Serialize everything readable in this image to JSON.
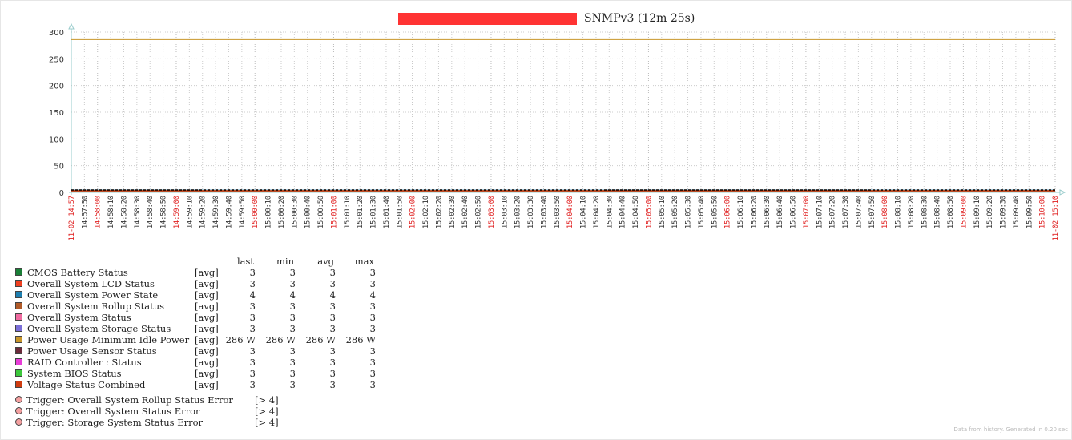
{
  "title": "SNMPv3 (12m 25s)",
  "chart_data": {
    "type": "line",
    "y_ticks": [
      "300",
      "250",
      "200",
      "150",
      "100",
      "50",
      "0"
    ],
    "ylim": [
      0,
      300
    ],
    "grid": true,
    "x_labels": [
      "11-02 14:57",
      "14:57:50",
      "14:58:00",
      "14:58:10",
      "14:58:20",
      "14:58:30",
      "14:58:40",
      "14:58:50",
      "14:59:00",
      "14:59:10",
      "14:59:20",
      "14:59:30",
      "14:59:40",
      "14:59:50",
      "15:00:00",
      "15:00:10",
      "15:00:20",
      "15:00:30",
      "15:00:40",
      "15:00:50",
      "15:01:00",
      "15:01:10",
      "15:01:20",
      "15:01:30",
      "15:01:40",
      "15:01:50",
      "15:02:00",
      "15:02:10",
      "15:02:20",
      "15:02:30",
      "15:02:40",
      "15:02:50",
      "15:03:00",
      "15:03:10",
      "15:03:20",
      "15:03:30",
      "15:03:40",
      "15:03:50",
      "15:04:00",
      "15:04:10",
      "15:04:20",
      "15:04:30",
      "15:04:40",
      "15:04:50",
      "15:05:00",
      "15:05:10",
      "15:05:20",
      "15:05:30",
      "15:05:40",
      "15:05:50",
      "15:06:00",
      "15:06:10",
      "15:06:20",
      "15:06:30",
      "15:06:40",
      "15:06:50",
      "15:07:00",
      "15:07:10",
      "15:07:20",
      "15:07:30",
      "15:07:40",
      "15:07:50",
      "15:08:00",
      "15:08:10",
      "15:08:20",
      "15:08:30",
      "15:08:40",
      "15:08:50",
      "15:09:00",
      "15:09:10",
      "15:09:20",
      "15:09:30",
      "15:09:40",
      "15:09:50",
      "15:10:00",
      "11-02 15:10"
    ],
    "highlight_labels": [
      "11-02 14:57",
      "14:58:00",
      "14:59:00",
      "15:00:00",
      "15:01:00",
      "15:02:00",
      "15:03:00",
      "15:04:00",
      "15:05:00",
      "15:06:00",
      "15:07:00",
      "15:08:00",
      "15:09:00",
      "15:10:00",
      "11-02 15:10"
    ],
    "series": [
      {
        "name": "CMOS Battery Status",
        "color": "#1a7f37",
        "value": 3
      },
      {
        "name": "Overall System LCD Status",
        "color": "#f04020",
        "value": 3
      },
      {
        "name": "Overall System Power State",
        "color": "#1e7fb0",
        "value": 4
      },
      {
        "name": "Overall System Rollup Status",
        "color": "#b05a28",
        "value": 3
      },
      {
        "name": "Overall System Status",
        "color": "#f06aa0",
        "value": 3
      },
      {
        "name": "Overall System Storage Status",
        "color": "#7a6ed8",
        "value": 3
      },
      {
        "name": "Power Usage Minimum Idle Power",
        "color": "#c8962a",
        "value": 286
      },
      {
        "name": "Power Usage Sensor Status",
        "color": "#6b2a3a",
        "value": 3
      },
      {
        "name": "RAID Controller : Status",
        "color": "#e83cd8",
        "value": 3
      },
      {
        "name": "System BIOS Status",
        "color": "#3cc83c",
        "value": 3
      },
      {
        "name": "Voltage Status Combined",
        "color": "#d03c10",
        "value": 3
      }
    ]
  },
  "legend": {
    "headers": {
      "last": "last",
      "min": "min",
      "avg": "avg",
      "max": "max"
    },
    "rows": [
      {
        "name": "CMOS Battery Status",
        "fn": "[avg]",
        "last": "3",
        "min": "3",
        "avg": "3",
        "max": "3"
      },
      {
        "name": "Overall System LCD Status",
        "fn": "[avg]",
        "last": "3",
        "min": "3",
        "avg": "3",
        "max": "3"
      },
      {
        "name": "Overall System Power State",
        "fn": "[avg]",
        "last": "4",
        "min": "4",
        "avg": "4",
        "max": "4"
      },
      {
        "name": "Overall System Rollup Status",
        "fn": "[avg]",
        "last": "3",
        "min": "3",
        "avg": "3",
        "max": "3"
      },
      {
        "name": "Overall System Status",
        "fn": "[avg]",
        "last": "3",
        "min": "3",
        "avg": "3",
        "max": "3"
      },
      {
        "name": "Overall System Storage Status",
        "fn": "[avg]",
        "last": "3",
        "min": "3",
        "avg": "3",
        "max": "3"
      },
      {
        "name": "Power Usage Minimum Idle Power",
        "fn": "[avg]",
        "last": "286 W",
        "min": "286 W",
        "avg": "286 W",
        "max": "286 W"
      },
      {
        "name": "Power Usage Sensor Status",
        "fn": "[avg]",
        "last": "3",
        "min": "3",
        "avg": "3",
        "max": "3"
      },
      {
        "name": "RAID Controller : Status",
        "fn": "[avg]",
        "last": "3",
        "min": "3",
        "avg": "3",
        "max": "3"
      },
      {
        "name": "System BIOS Status",
        "fn": "[avg]",
        "last": "3",
        "min": "3",
        "avg": "3",
        "max": "3"
      },
      {
        "name": "Voltage Status Combined",
        "fn": "[avg]",
        "last": "3",
        "min": "3",
        "avg": "3",
        "max": "3"
      }
    ]
  },
  "triggers": [
    {
      "name": "Trigger: Overall System Rollup Status Error",
      "cond": "[> 4]",
      "color": "#f4a0a0"
    },
    {
      "name": "Trigger: Overall System Status Error",
      "cond": "[> 4]",
      "color": "#f4a0a0"
    },
    {
      "name": "Trigger: Storage System Status Error",
      "cond": "[> 4]",
      "color": "#f4a0a0"
    }
  ],
  "footer": "Data from history. Generated in 0.20 sec"
}
